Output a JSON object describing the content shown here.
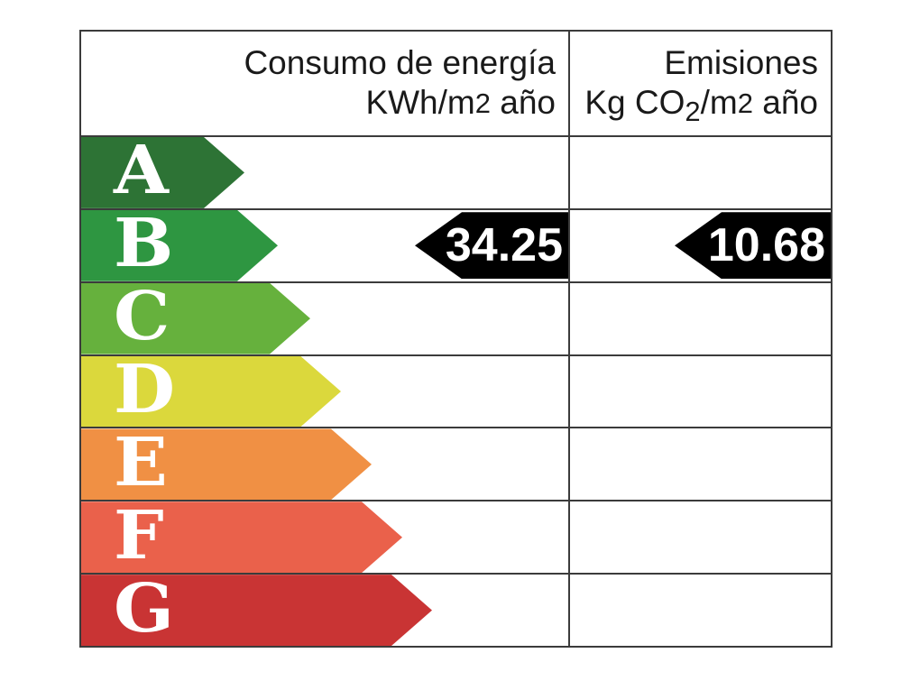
{
  "columns": {
    "energy": {
      "title": "Consumo de energía",
      "unit_prefix": "KWh/m",
      "unit_exp": "2",
      "unit_suffix": " año"
    },
    "emissions": {
      "title": "Emisiones",
      "unit_prefix": "Kg CO",
      "unit_sub": "2",
      "unit_mid": "/m",
      "unit_exp": "2",
      "unit_suffix": " año"
    }
  },
  "scale": [
    {
      "letter": "A",
      "color": "#2d7335",
      "arrow_width": 181
    },
    {
      "letter": "B",
      "color": "#2e9641",
      "arrow_width": 218
    },
    {
      "letter": "C",
      "color": "#66b13d",
      "arrow_width": 254
    },
    {
      "letter": "D",
      "color": "#dbd83c",
      "arrow_width": 288
    },
    {
      "letter": "E",
      "color": "#f09044",
      "arrow_width": 322
    },
    {
      "letter": "F",
      "color": "#ea614b",
      "arrow_width": 356
    },
    {
      "letter": "G",
      "color": "#c93434",
      "arrow_width": 389
    }
  ],
  "rating": {
    "letter": "B",
    "energy_value": "34.25",
    "emissions_value": "10.68",
    "marker_color": "#000000",
    "marker_text_color": "#ffffff"
  },
  "border_color": "#3b3b3b",
  "chart_data": {
    "type": "bar",
    "title": "",
    "categories": [
      "A",
      "B",
      "C",
      "D",
      "E",
      "F",
      "G"
    ],
    "bar_colors": [
      "#2d7335",
      "#2e9641",
      "#66b13d",
      "#dbd83c",
      "#f09044",
      "#ea614b",
      "#c93434"
    ],
    "columns": [
      "Consumo de energía KWh/m2 año",
      "Emisiones Kg CO2/m2 año"
    ],
    "rated_class": "B",
    "values": {
      "consumo_energia_kwh_m2_ano": 34.25,
      "emisiones_kg_co2_m2_ano": 10.68
    },
    "legend_position": "none",
    "grid": false
  }
}
